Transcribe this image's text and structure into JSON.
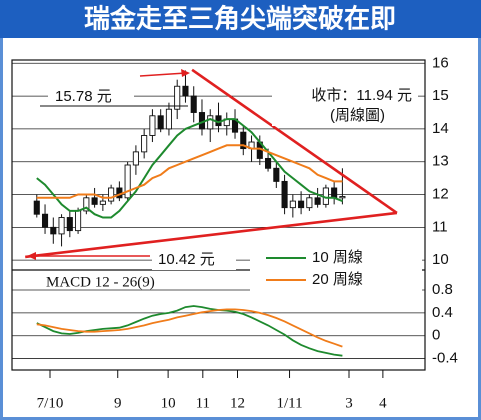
{
  "chart_data": [
    {
      "type": "candlestick",
      "title": "瑞金走至三角尖端突破在即",
      "x": [
        3,
        4,
        5,
        6,
        7,
        8,
        9,
        10,
        11,
        12,
        13,
        14,
        15,
        16,
        17,
        18,
        19,
        20,
        21,
        22,
        23,
        24,
        25,
        26,
        27,
        28,
        29,
        30,
        31,
        32,
        33,
        34,
        35,
        36,
        37,
        38,
        39,
        40
      ],
      "open": [
        11.8,
        11.4,
        11.0,
        10.8,
        11.3,
        10.9,
        11.5,
        11.9,
        11.7,
        11.8,
        12.2,
        11.9,
        12.9,
        13.3,
        13.8,
        14.4,
        14.0,
        14.6,
        15.3,
        15.0,
        14.5,
        14.0,
        14.4,
        14.1,
        14.3,
        13.9,
        13.4,
        13.6,
        13.1,
        12.8,
        12.4,
        11.6,
        11.8,
        11.6,
        11.9,
        11.7,
        12.2,
        11.9
      ],
      "high": [
        12.0,
        11.7,
        11.3,
        11.4,
        11.5,
        11.6,
        12.0,
        12.2,
        12.0,
        12.3,
        12.4,
        13.0,
        13.5,
        14.0,
        14.6,
        14.6,
        14.8,
        15.5,
        15.78,
        15.3,
        14.9,
        14.6,
        14.8,
        14.5,
        14.6,
        14.1,
        13.8,
        13.8,
        13.4,
        13.0,
        12.6,
        12.0,
        12.1,
        12.0,
        12.2,
        12.3,
        12.4,
        12.8
      ],
      "low": [
        11.3,
        10.8,
        10.5,
        10.42,
        10.7,
        10.8,
        11.4,
        11.6,
        11.5,
        11.7,
        11.8,
        11.8,
        12.6,
        13.1,
        13.6,
        13.9,
        13.8,
        14.3,
        14.8,
        14.2,
        13.8,
        13.6,
        13.9,
        13.8,
        13.7,
        13.2,
        13.0,
        12.9,
        12.7,
        12.2,
        11.4,
        11.3,
        11.4,
        11.5,
        11.6,
        11.6,
        11.7,
        11.7
      ],
      "close": [
        11.4,
        11.0,
        10.8,
        11.3,
        10.9,
        11.5,
        11.9,
        11.7,
        11.8,
        12.2,
        11.9,
        12.9,
        13.3,
        13.8,
        14.4,
        14.0,
        14.6,
        15.3,
        15.0,
        14.5,
        14.0,
        14.4,
        14.1,
        14.3,
        13.9,
        13.4,
        13.6,
        13.1,
        12.8,
        12.4,
        11.6,
        11.8,
        11.6,
        11.9,
        11.7,
        12.2,
        11.9,
        11.94
      ],
      "series": [
        {
          "name": "10 周線",
          "color": "#1e8a2e",
          "values": [
            12.5,
            12.3,
            12.0,
            11.7,
            11.5,
            11.5,
            11.6,
            11.4,
            11.3,
            11.3,
            11.5,
            11.8,
            12.1,
            12.5,
            12.9,
            13.2,
            13.5,
            13.8,
            14.0,
            14.1,
            14.2,
            14.3,
            14.2,
            14.3,
            14.3,
            14.1,
            13.9,
            13.6,
            13.3,
            13.0,
            12.7,
            12.5,
            12.3,
            12.1,
            12.0,
            11.9,
            11.9,
            11.8
          ]
        },
        {
          "name": "20 周線",
          "color": "#f07c1a",
          "values": [
            11.9,
            11.9,
            11.9,
            11.9,
            11.9,
            12.0,
            12.0,
            12.0,
            11.9,
            11.9,
            12.0,
            12.1,
            12.2,
            12.3,
            12.5,
            12.6,
            12.8,
            12.9,
            13.0,
            13.1,
            13.2,
            13.3,
            13.4,
            13.5,
            13.5,
            13.5,
            13.4,
            13.4,
            13.3,
            13.2,
            13.1,
            13.0,
            12.9,
            12.8,
            12.6,
            12.5,
            12.4,
            12.4
          ]
        }
      ],
      "trendlines": [
        {
          "x": [
            21.8,
            46.6
          ],
          "y": [
            15.8,
            11.44
          ]
        },
        {
          "x": [
            1.6,
            46.6
          ],
          "y": [
            10.1,
            11.44
          ]
        }
      ],
      "trendline_color": "#e02020",
      "peak_label": "15.78 元",
      "low_label": "10.42 元",
      "close_label": "收市：11.94 元",
      "chart_note": "(周線圖)",
      "xlim": [
        0,
        50
      ],
      "ylim": [
        9.7,
        16.1
      ],
      "yticks": [
        16,
        15,
        14,
        13,
        12,
        11,
        10
      ],
      "grid": true,
      "legend": "lower right"
    },
    {
      "type": "line",
      "title": "MACD 12 - 26(9)",
      "x": [
        3,
        4,
        5,
        6,
        7,
        8,
        9,
        10,
        11,
        12,
        13,
        14,
        15,
        16,
        17,
        18,
        19,
        20,
        21,
        22,
        23,
        24,
        25,
        26,
        27,
        28,
        29,
        30,
        31,
        32,
        33,
        34,
        35,
        36,
        37,
        38,
        39,
        40
      ],
      "series": [
        {
          "color": "#1e8a2e",
          "values": [
            0.22,
            0.15,
            0.08,
            0.04,
            0.03,
            0.05,
            0.08,
            0.1,
            0.12,
            0.13,
            0.14,
            0.18,
            0.24,
            0.3,
            0.35,
            0.38,
            0.4,
            0.44,
            0.5,
            0.52,
            0.5,
            0.47,
            0.45,
            0.44,
            0.42,
            0.38,
            0.32,
            0.25,
            0.18,
            0.1,
            0.02,
            -0.08,
            -0.16,
            -0.22,
            -0.27,
            -0.3,
            -0.33,
            -0.35
          ]
        },
        {
          "color": "#f07c1a",
          "values": [
            0.2,
            0.18,
            0.15,
            0.12,
            0.1,
            0.08,
            0.07,
            0.07,
            0.08,
            0.09,
            0.1,
            0.12,
            0.15,
            0.18,
            0.22,
            0.25,
            0.28,
            0.32,
            0.35,
            0.38,
            0.41,
            0.43,
            0.45,
            0.46,
            0.46,
            0.45,
            0.43,
            0.4,
            0.36,
            0.31,
            0.25,
            0.18,
            0.11,
            0.04,
            -0.03,
            -0.09,
            -0.14,
            -0.19
          ]
        }
      ],
      "xlim": [
        0,
        50
      ],
      "ylim": [
        -0.6,
        1.15
      ],
      "yticks": [
        0.8,
        0.4,
        0,
        -0.4
      ],
      "grid": true,
      "xticks": [
        {
          "value": 4.6,
          "label": "7/10"
        },
        {
          "value": 12.8,
          "label": "9"
        },
        {
          "value": 18.9,
          "label": "10"
        },
        {
          "value": 23.1,
          "label": "11"
        },
        {
          "value": 27.3,
          "label": "12"
        },
        {
          "value": 33.6,
          "label": "1/11"
        },
        {
          "value": 40.8,
          "label": "3"
        },
        {
          "value": 44.9,
          "label": "4"
        }
      ]
    }
  ]
}
